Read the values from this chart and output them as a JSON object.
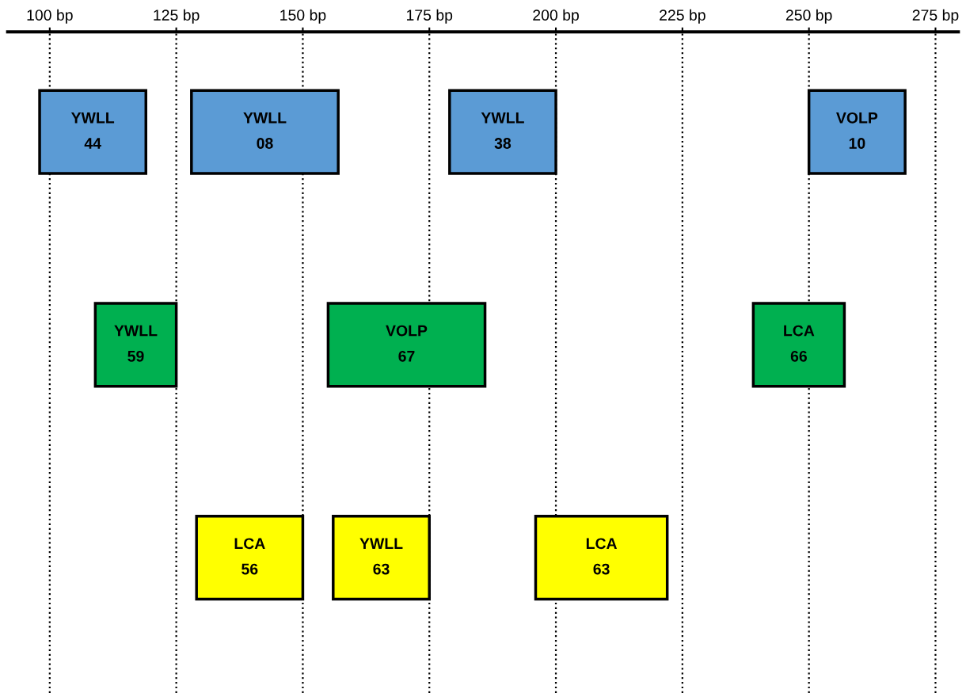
{
  "chart_data": {
    "type": "bar",
    "orientation": "horizontal",
    "categories": [
      null,
      null,
      null
    ],
    "series": [
      {
        "name": "YWLL\n44",
        "color": "#5b9bd5",
        "base": [
          98,
          null,
          null
        ],
        "values": [
          21,
          null,
          null
        ]
      },
      {
        "name": "YWLL\n08",
        "color": "#5b9bd5",
        "base": [
          128,
          null,
          null
        ],
        "values": [
          29,
          null,
          null
        ]
      },
      {
        "name": "YWLL\n38",
        "color": "#5b9bd5",
        "base": [
          179,
          null,
          null
        ],
        "values": [
          21,
          null,
          null
        ]
      },
      {
        "name": "VOLP\n10",
        "color": "#5b9bd5",
        "base": [
          250,
          null,
          null
        ],
        "values": [
          19,
          null,
          null
        ]
      },
      {
        "name": "YWLL\n59",
        "color": "#00b050",
        "base": [
          null,
          109,
          null
        ],
        "values": [
          null,
          16,
          null
        ]
      },
      {
        "name": "VOLP\n67",
        "color": "#00b050",
        "base": [
          null,
          155,
          null
        ],
        "values": [
          null,
          31,
          null
        ]
      },
      {
        "name": "LCA\n66",
        "color": "#00b050",
        "base": [
          null,
          239,
          null
        ],
        "values": [
          null,
          18,
          null
        ]
      },
      {
        "name": "LCA\n56",
        "color": "#ffff00",
        "base": [
          null,
          null,
          129
        ],
        "values": [
          null,
          null,
          21
        ]
      },
      {
        "name": "YWLL\n63",
        "color": "#ffff00",
        "base": [
          null,
          null,
          156
        ],
        "values": [
          null,
          null,
          19
        ]
      },
      {
        "name": "LCA\n63",
        "color": "#ffff00",
        "base": [
          null,
          null,
          196
        ],
        "values": [
          null,
          null,
          26
        ]
      }
    ],
    "xlim": [
      91.7,
      279.5
    ],
    "xticks": [
      {
        "value": 100,
        "label": "100 bp"
      },
      {
        "value": 125,
        "label": "125 bp"
      },
      {
        "value": 150,
        "label": "150 bp"
      },
      {
        "value": 175,
        "label": "175 bp"
      },
      {
        "value": 200,
        "label": "200 bp"
      },
      {
        "value": 225,
        "label": "225 bp"
      },
      {
        "value": 250,
        "label": "250 bp"
      },
      {
        "value": 275,
        "label": "275 bp"
      }
    ],
    "grid": "x",
    "tick_labels": "x"
  }
}
